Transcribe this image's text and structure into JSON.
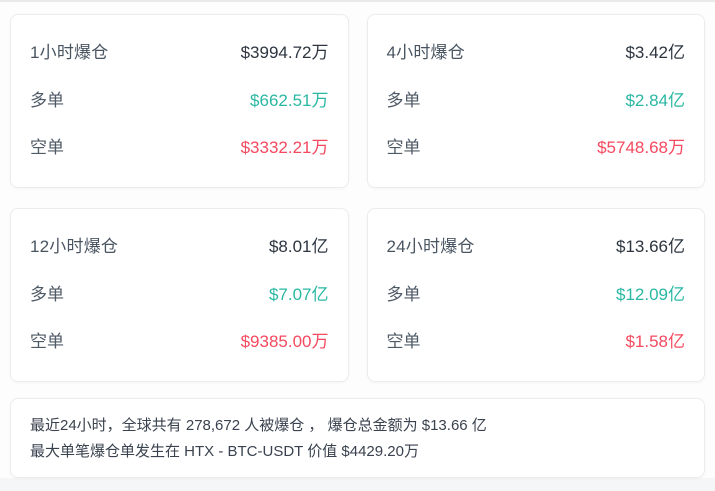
{
  "colors": {
    "long_value": "#2ab8a3",
    "short_value": "#f4495f",
    "total_value": "#2c3540",
    "card_background": "#ffffff",
    "card_border": "#ececec"
  },
  "cards": [
    {
      "title": "1小时爆仓",
      "total": "$3994.72万",
      "long_label": "多单",
      "long_value": "$662.51万",
      "short_label": "空单",
      "short_value": "$3332.21万"
    },
    {
      "title": "4小时爆仓",
      "total": "$3.42亿",
      "long_label": "多单",
      "long_value": "$2.84亿",
      "short_label": "空单",
      "short_value": "$5748.68万"
    },
    {
      "title": "12小时爆仓",
      "total": "$8.01亿",
      "long_label": "多单",
      "long_value": "$7.07亿",
      "short_label": "空单",
      "short_value": "$9385.00万"
    },
    {
      "title": "24小时爆仓",
      "total": "$13.66亿",
      "long_label": "多单",
      "long_value": "$12.09亿",
      "short_label": "空单",
      "short_value": "$1.58亿"
    }
  ],
  "summary": {
    "line1": "最近24小时，全球共有 278,672 人被爆仓 ， 爆仓总金额为 $13.66 亿",
    "line2": "最大单笔爆仓单发生在 HTX - BTC-USDT 价值 $4429.20万"
  }
}
